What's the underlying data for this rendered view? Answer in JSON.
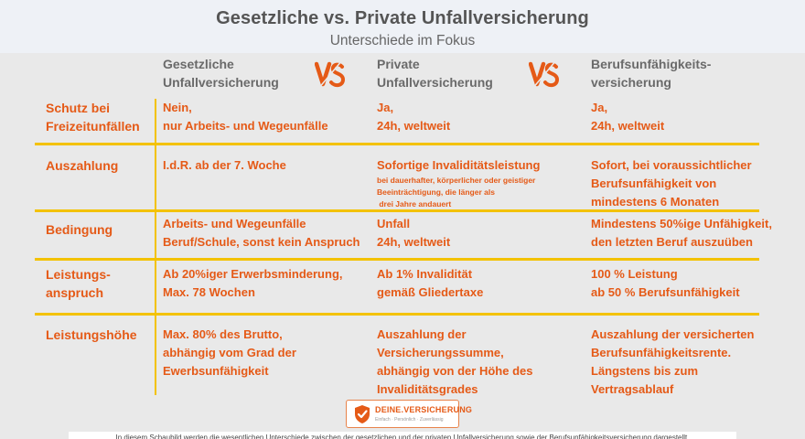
{
  "header": {
    "title": "Gesetzliche vs. Private Unfallversicherung",
    "subtitle": "Unterschiede im Fokus"
  },
  "columns": [
    {
      "line1": "Gesetzliche",
      "line2": "Unfallversicherung"
    },
    {
      "line1": "Private",
      "line2": "Unfallversicherung"
    },
    {
      "line1": "Berufsunfähigkeits-",
      "line2": "versicherung"
    }
  ],
  "vs_label": "VS",
  "rows": {
    "schutz": {
      "label1": "Schutz bei",
      "label2": "Freizeitunfällen",
      "c1": [
        "Nein,",
        "nur Arbeits- und Wegeunfälle"
      ],
      "c2": [
        "Ja,",
        "24h, weltweit"
      ],
      "c3": [
        "Ja,",
        "24h, weltweit"
      ]
    },
    "auszahlung": {
      "label1": "Auszahlung",
      "c1": [
        "I.d.R. ab der 7. Woche"
      ],
      "c2": [
        "Sofortige Invaliditätsleistung"
      ],
      "c2_small": [
        "bei dauerhafter, körperlicher oder geistiger",
        "Beeinträchtigung, die länger als",
        " drei Jahre andauert"
      ],
      "c3": [
        "Sofort, bei voraussichtlicher",
        "Berufsunfähigkeit von",
        "mindestens 6 Monaten"
      ]
    },
    "bedingung": {
      "label1": "Bedingung",
      "c1": [
        "Arbeits- und Wegeunfälle",
        "Beruf/Schule, sonst kein Anspruch"
      ],
      "c2": [
        "Unfall",
        "24h, weltweit"
      ],
      "c3": [
        "Mindestens 50%ige Unfähigkeit,",
        "den letzten Beruf auszuüben"
      ]
    },
    "leistungsanspruch": {
      "label1": "Leistungs-",
      "label2": "anspruch",
      "c1": [
        "Ab 20%iger Erwerbsminderung,",
        "Max. 78 Wochen"
      ],
      "c2": [
        "Ab 1% Invalidität",
        "gemäß Gliedertaxe"
      ],
      "c3": [
        "100 % Leistung",
        "ab 50 % Berufsunfähigkeit"
      ]
    },
    "leistungshoehe": {
      "label1": "Leistungshöhe",
      "c1": [
        "Max. 80% des Brutto,",
        "abhängig vom Grad der",
        "Ewerbsunfähigkeit"
      ],
      "c2": [
        "Auszahlung der",
        "Versicherungssumme,",
        "abhängig von der Höhe des",
        "Invaliditätsgrades"
      ],
      "c3": [
        "Auszahlung der versicherten",
        "Berufsunfähigkeitsrente.",
        "Längstens bis zum",
        "Vertragsablauf"
      ]
    }
  },
  "logo": {
    "brand": "DEINE.VERSICHERUNG",
    "tagline": "Einfach · Persönlich · Zuverlässig"
  },
  "footer_text": "In diesem Schaubild werden die wesentlichen Unterschiede zwischen der gesetzlichen und der privaten Unfallversicherung sowie der Berufsunfähigkeitsversicherung dargestellt.",
  "colors": {
    "accent": "#e55a17",
    "divider": "#f3c200",
    "background": "#e9e9e9",
    "header_bg": "#eef1f6"
  }
}
